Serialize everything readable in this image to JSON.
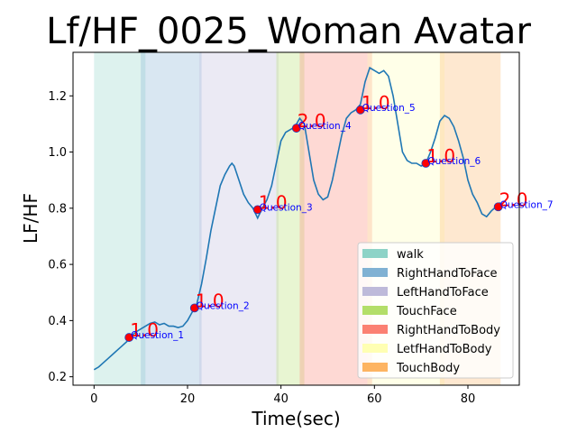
{
  "chart_data": {
    "type": "line",
    "title": "Lf/HF_0025_Woman Avatar",
    "xlabel": "Time(sec)",
    "ylabel": "LF/HF",
    "xlim": [
      -4.5,
      91
    ],
    "ylim": [
      0.17,
      1.355
    ],
    "xticks": [
      0,
      20,
      40,
      60,
      80
    ],
    "yticks": [
      0.2,
      0.4,
      0.6,
      0.8,
      1.0,
      1.2
    ],
    "ytick_labels": [
      "0.2",
      "0.4",
      "0.6",
      "0.8",
      "1.0",
      "1.2"
    ],
    "grid": false,
    "legend_position": "lower right",
    "line_color": "#1f77b4",
    "series": [
      {
        "x": [
          0,
          1,
          2,
          3,
          4,
          5,
          6,
          7,
          7.5,
          8,
          9,
          10,
          11,
          12,
          13,
          14,
          15,
          16,
          17,
          18,
          19,
          20,
          21,
          21.5,
          22,
          23,
          24,
          25,
          26,
          27,
          28,
          29,
          29.5,
          30,
          31,
          32,
          33,
          34,
          35,
          36,
          37,
          38,
          39,
          40,
          41,
          42,
          43,
          44,
          45,
          46,
          47,
          48,
          49,
          50,
          51,
          52,
          53,
          54,
          55,
          56,
          57,
          58,
          59,
          60,
          61,
          62,
          63,
          64,
          65,
          66,
          67,
          68,
          69,
          70,
          71,
          72,
          73,
          74,
          75,
          76,
          77,
          78,
          79,
          80,
          81,
          82,
          83,
          84,
          85,
          86,
          87
        ],
        "y": [
          0.225,
          0.235,
          0.25,
          0.265,
          0.28,
          0.295,
          0.31,
          0.325,
          0.34,
          0.345,
          0.36,
          0.37,
          0.38,
          0.39,
          0.395,
          0.385,
          0.39,
          0.38,
          0.38,
          0.375,
          0.38,
          0.4,
          0.43,
          0.445,
          0.46,
          0.53,
          0.62,
          0.72,
          0.8,
          0.88,
          0.92,
          0.95,
          0.96,
          0.95,
          0.9,
          0.85,
          0.82,
          0.8,
          0.765,
          0.8,
          0.83,
          0.88,
          0.96,
          1.04,
          1.07,
          1.08,
          1.09,
          1.12,
          1.1,
          1.0,
          0.9,
          0.85,
          0.83,
          0.84,
          0.9,
          0.98,
          1.06,
          1.12,
          1.14,
          1.15,
          1.17,
          1.25,
          1.3,
          1.29,
          1.28,
          1.29,
          1.27,
          1.2,
          1.1,
          1.0,
          0.97,
          0.96,
          0.96,
          0.95,
          0.96,
          1.0,
          1.05,
          1.11,
          1.13,
          1.12,
          1.09,
          1.04,
          0.98,
          0.9,
          0.85,
          0.82,
          0.78,
          0.77,
          0.79,
          0.805,
          0.82
        ]
      }
    ],
    "points": [
      {
        "x": 7.5,
        "y": 0.34,
        "value_label": "1.0",
        "question_label": "Question_1"
      },
      {
        "x": 21.5,
        "y": 0.445,
        "value_label": "1.0",
        "question_label": "Question_2"
      },
      {
        "x": 35,
        "y": 0.795,
        "value_label": "1.0",
        "question_label": "Question_3"
      },
      {
        "x": 43.3,
        "y": 1.085,
        "value_label": "2.0",
        "question_label": "Question_4"
      },
      {
        "x": 57,
        "y": 1.15,
        "value_label": "1.0",
        "question_label": "Question_5"
      },
      {
        "x": 71,
        "y": 0.96,
        "value_label": "1.0",
        "question_label": "Question_6"
      },
      {
        "x": 86.5,
        "y": 0.805,
        "value_label": "2.0",
        "question_label": "Question_7"
      }
    ],
    "regions": [
      {
        "name": "walk",
        "start": 0,
        "end": 11,
        "color": "#8dd3c7"
      },
      {
        "name": "RightHandToFace",
        "start": 10,
        "end": 23,
        "color": "#80b1d3"
      },
      {
        "name": "LeftHandToFace",
        "start": 22.5,
        "end": 39.5,
        "color": "#bebada"
      },
      {
        "name": "TouchFace",
        "start": 39,
        "end": 45,
        "color": "#b3de69"
      },
      {
        "name": "RightHandToBody",
        "start": 44,
        "end": 59.5,
        "color": "#fb8072"
      },
      {
        "name": "LetfHandToBody",
        "start": 58.5,
        "end": 75,
        "color": "#ffffb3"
      },
      {
        "name": "TouchBody",
        "start": 74,
        "end": 87,
        "color": "#fdb462"
      }
    ],
    "legend": [
      "walk",
      "RightHandToFace",
      "LeftHandToFace",
      "TouchFace",
      "RightHandToBody",
      "LetfHandToBody",
      "TouchBody"
    ]
  }
}
